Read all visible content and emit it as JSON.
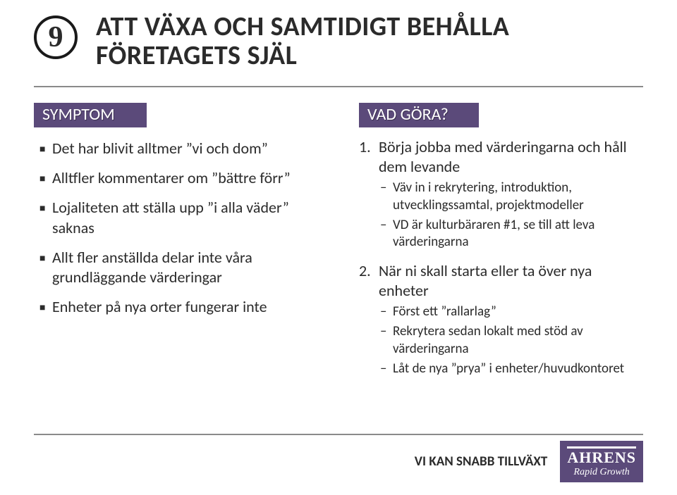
{
  "badge_number": "9",
  "title_line1": "ATT VÄXA OCH SAMTIDIGT BEHÅLLA",
  "title_line2": "FÖRETAGETS SJÄL",
  "colors": {
    "accent": "#5b4a7a",
    "rule": "#8a8a8a",
    "text": "#2b2b2b",
    "badge_border": "#1a1a1a"
  },
  "left": {
    "header": "SYMPTOM",
    "items": [
      "Det har blivit alltmer ”vi och dom”",
      "Alltfler kommentarer om ”bättre förr”",
      "Lojaliteten att ställa upp ”i alla väder” saknas",
      "Allt fler anställda delar inte våra grundläggande värderingar",
      "Enheter på nya orter fungerar inte"
    ]
  },
  "right": {
    "header": "VAD GÖRA?",
    "items": [
      {
        "num": "1.",
        "text": "Börja jobba med värderingarna och håll dem levande",
        "subs": [
          "Väv in i rekrytering, introduktion, utvecklingssamtal, projektmodeller",
          "VD är kulturbäraren #1, se till att leva värderingarna"
        ]
      },
      {
        "num": "2.",
        "text": "När ni skall starta eller ta över nya enheter",
        "subs": [
          "Först ett ”rallarlag”",
          "Rekrytera sedan lokalt med stöd av värderingarna",
          "Låt de nya ”prya” i enheter/huvudkontoret"
        ]
      }
    ]
  },
  "footer": {
    "tagline": "VI KAN SNABB TILLVÄXT",
    "logo_name": "AHRENS",
    "logo_sub": "Rapid Growth"
  }
}
